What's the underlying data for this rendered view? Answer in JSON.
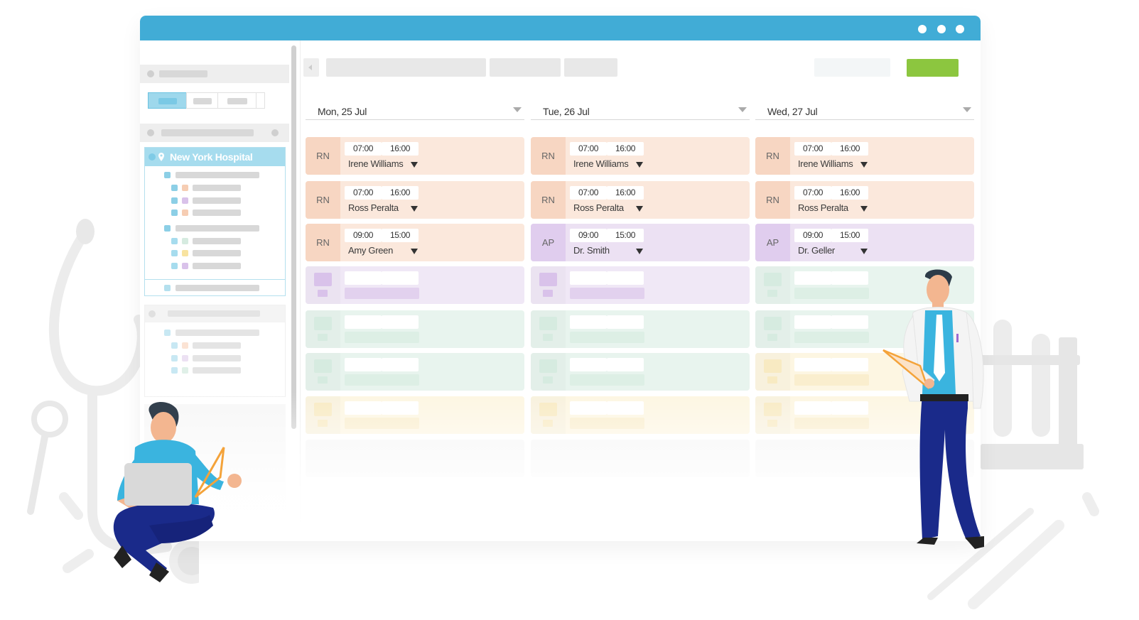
{
  "window": {
    "titlebar_color": "#41acd6",
    "titlebar_dots": 3
  },
  "sidebar": {
    "hospital": {
      "name": "New York Hospital",
      "icon": "location-pin-icon"
    }
  },
  "toolbar": {
    "prev_icon": "chevron-left-icon",
    "primary_button_color": "#8cc63f"
  },
  "days": [
    {
      "label": "Mon, 25 Jul"
    },
    {
      "label": "Tue, 26 Jul"
    },
    {
      "label": "Wed, 27 Jul"
    }
  ],
  "shifts": [
    [
      {
        "role": "RN",
        "start": "07:00",
        "end": "16:00",
        "person": "Irene Williams"
      },
      {
        "role": "RN",
        "start": "07:00",
        "end": "16:00",
        "person": "Ross Peralta"
      },
      {
        "role": "RN",
        "start": "09:00",
        "end": "15:00",
        "person": "Amy Green"
      }
    ],
    [
      {
        "role": "RN",
        "start": "07:00",
        "end": "16:00",
        "person": "Irene Williams"
      },
      {
        "role": "RN",
        "start": "07:00",
        "end": "16:00",
        "person": "Ross Peralta"
      },
      {
        "role": "AP",
        "start": "09:00",
        "end": "15:00",
        "person": "Dr. Smith"
      }
    ],
    [
      {
        "role": "RN",
        "start": "07:00",
        "end": "16:00",
        "person": "Irene Williams"
      },
      {
        "role": "RN",
        "start": "07:00",
        "end": "16:00",
        "person": "Ross Peralta"
      },
      {
        "role": "AP",
        "start": "09:00",
        "end": "15:00",
        "person": "Dr. Geller"
      }
    ]
  ],
  "colors": {
    "rn_card": "#fbe8dc",
    "rn_role": "#f7d6c2",
    "ap_card": "#ece1f3",
    "ap_role": "#e0cdee",
    "purple_ph": "#f0e8f6",
    "purple_ph_role": "#d9c2ea",
    "green_ph": "#e8f4ee",
    "green_ph_role": "#d6ebe0",
    "yellow_ph": "#fdf6e2",
    "yellow_ph_role": "#f8eac2"
  }
}
